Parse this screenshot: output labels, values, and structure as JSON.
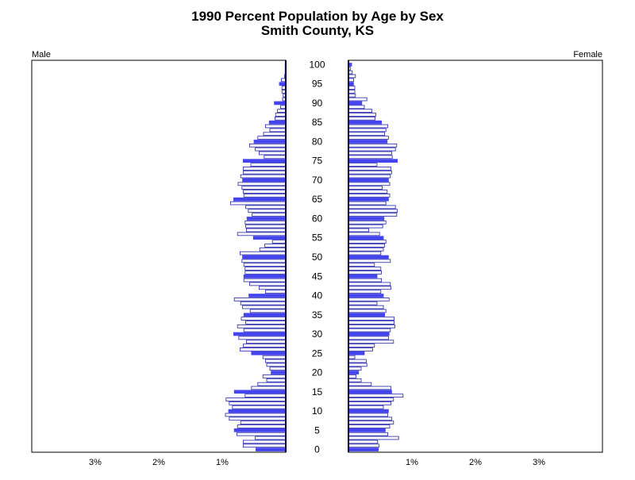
{
  "chart_data": {
    "type": "bar",
    "title": "1990 Percent Population by Age by Sex",
    "subtitle": "Smith County, KS",
    "left_label": "Male",
    "right_label": "Female",
    "x_ticks": [
      "3%",
      "2%",
      "1%",
      "1%",
      "2%",
      "3%"
    ],
    "x_tick_values": [
      3,
      2,
      1,
      1,
      2,
      3
    ],
    "age_labels": [
      "0",
      "5",
      "10",
      "15",
      "20",
      "25",
      "30",
      "35",
      "40",
      "45",
      "50",
      "55",
      "60",
      "65",
      "70",
      "75",
      "80",
      "85",
      "90",
      "95",
      "100"
    ],
    "age_label_values": [
      0,
      5,
      10,
      15,
      20,
      25,
      30,
      35,
      40,
      45,
      50,
      55,
      60,
      65,
      70,
      75,
      80,
      85,
      90,
      95,
      100
    ],
    "xlim": [
      0,
      4
    ],
    "ylim": [
      0,
      100
    ],
    "colors": {
      "highlight": "#4444ee",
      "outline": "#2222aa",
      "axis": "#000033"
    },
    "highlight_every": 5,
    "series": [
      {
        "name": "Male",
        "values": [
          0.47,
          0.67,
          0.67,
          0.48,
          0.77,
          0.81,
          0.76,
          0.71,
          0.89,
          0.95,
          0.9,
          0.84,
          0.89,
          0.94,
          0.64,
          0.81,
          0.54,
          0.44,
          0.3,
          0.36,
          0.23,
          0.25,
          0.3,
          0.32,
          0.36,
          0.54,
          0.72,
          0.67,
          0.62,
          0.74,
          0.82,
          0.66,
          0.76,
          0.63,
          0.7,
          0.66,
          0.56,
          0.68,
          0.71,
          0.81,
          0.58,
          0.32,
          0.42,
          0.57,
          0.66,
          0.66,
          0.64,
          0.64,
          0.66,
          0.69,
          0.68,
          0.72,
          0.41,
          0.33,
          0.21,
          0.51,
          0.76,
          0.62,
          0.63,
          0.64,
          0.61,
          0.53,
          0.59,
          0.63,
          0.87,
          0.82,
          0.66,
          0.67,
          0.69,
          0.75,
          0.68,
          0.71,
          0.67,
          0.67,
          0.55,
          0.67,
          0.34,
          0.42,
          0.48,
          0.57,
          0.5,
          0.44,
          0.35,
          0.25,
          0.32,
          0.26,
          0.17,
          0.16,
          0.13,
          0.08,
          0.18,
          0.05,
          0.04,
          0.06,
          0.06,
          0.1,
          0.07,
          0.02,
          0.01,
          0.0,
          0.01
        ]
      },
      {
        "name": "Female",
        "values": [
          0.47,
          0.48,
          0.46,
          0.79,
          0.62,
          0.58,
          0.65,
          0.71,
          0.68,
          0.62,
          0.63,
          0.55,
          0.67,
          0.71,
          0.86,
          0.68,
          0.67,
          0.36,
          0.2,
          0.12,
          0.16,
          0.2,
          0.29,
          0.28,
          0.1,
          0.25,
          0.38,
          0.41,
          0.71,
          0.63,
          0.64,
          0.66,
          0.73,
          0.72,
          0.72,
          0.57,
          0.59,
          0.55,
          0.45,
          0.64,
          0.55,
          0.51,
          0.67,
          0.66,
          0.52,
          0.45,
          0.52,
          0.51,
          0.41,
          0.66,
          0.63,
          0.51,
          0.55,
          0.57,
          0.59,
          0.55,
          0.49,
          0.32,
          0.54,
          0.59,
          0.56,
          0.76,
          0.77,
          0.74,
          0.59,
          0.63,
          0.65,
          0.61,
          0.53,
          0.65,
          0.63,
          0.66,
          0.68,
          0.67,
          0.45,
          0.77,
          0.69,
          0.68,
          0.74,
          0.76,
          0.61,
          0.63,
          0.57,
          0.59,
          0.62,
          0.52,
          0.42,
          0.43,
          0.37,
          0.25,
          0.21,
          0.29,
          0.11,
          0.1,
          0.1,
          0.08,
          0.08,
          0.11,
          0.06,
          0.03,
          0.05
        ]
      }
    ]
  }
}
